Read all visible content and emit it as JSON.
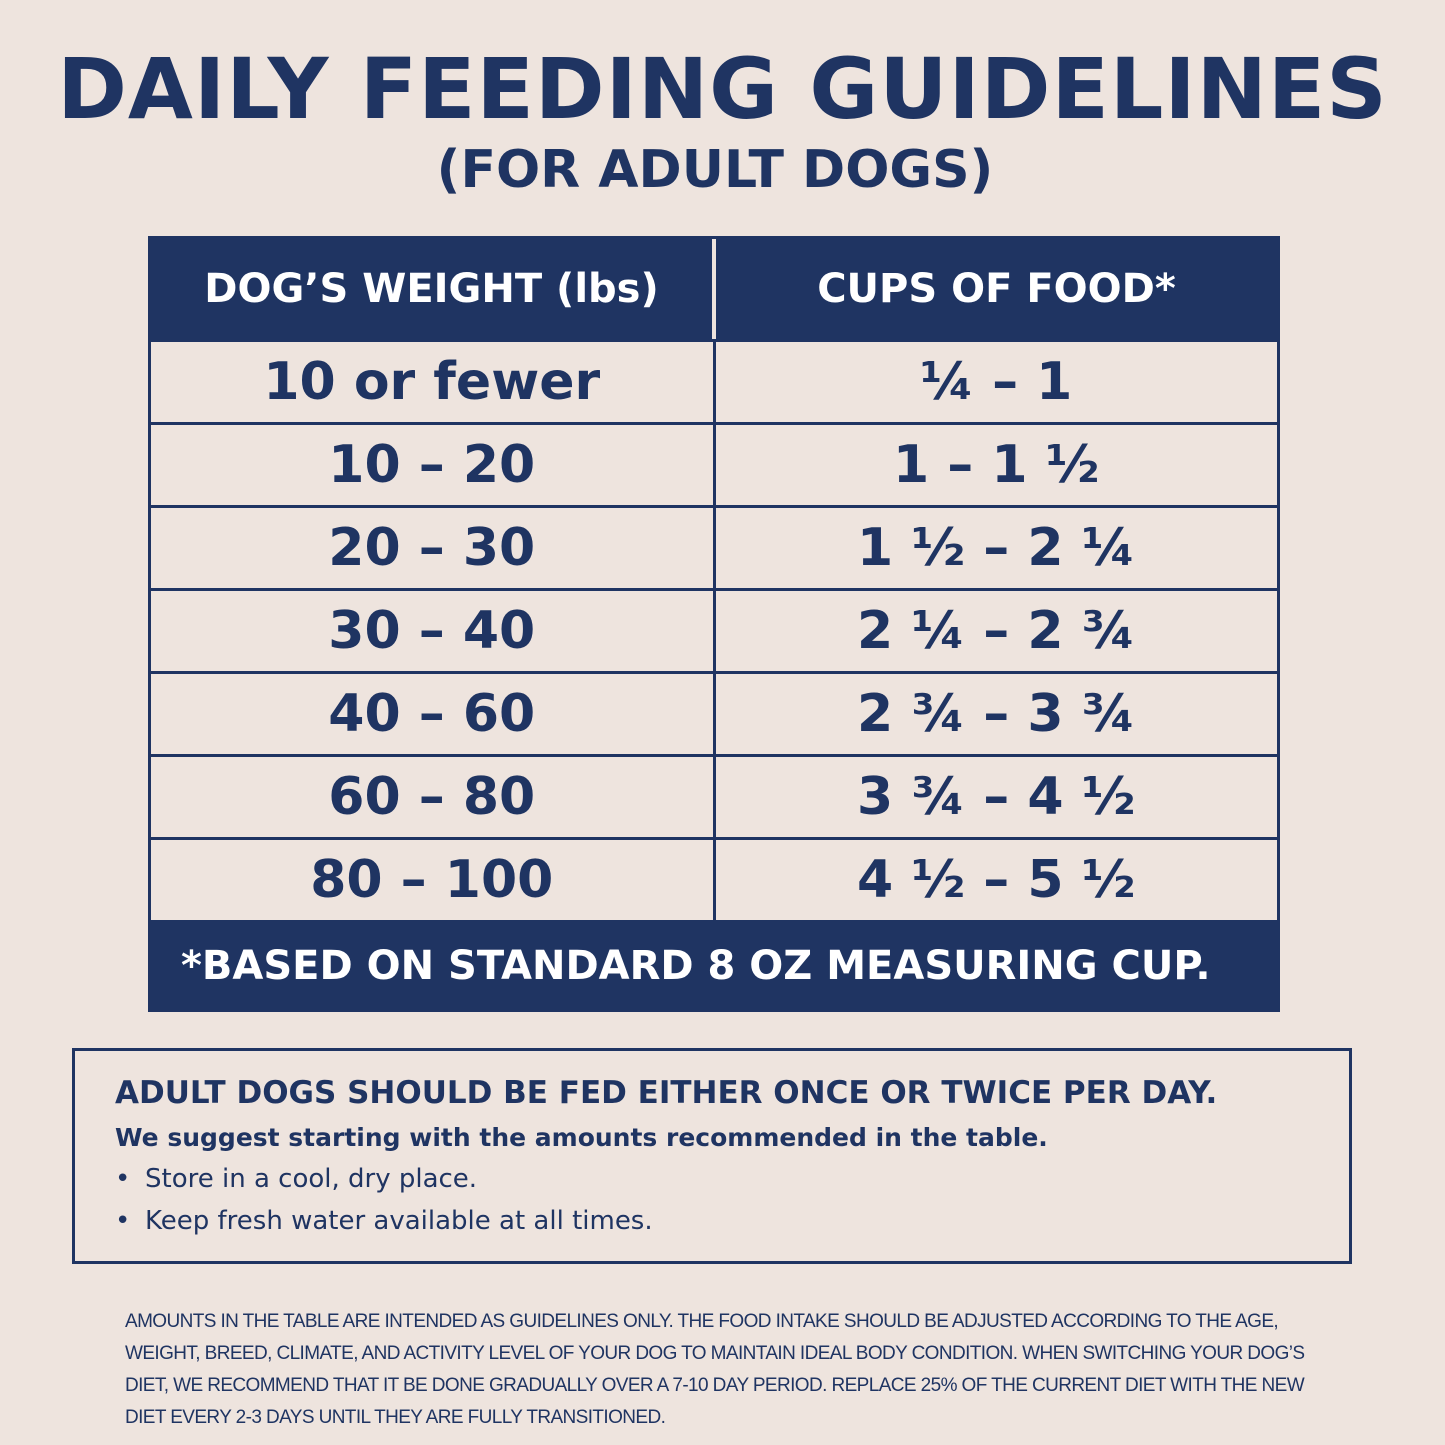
{
  "header": {
    "title": "DAILY FEEDING GUIDELINES",
    "subtitle": "(FOR ADULT DOGS)"
  },
  "table": {
    "columns": [
      "DOG’S WEIGHT (lbs)",
      "CUPS OF FOOD*"
    ],
    "rows": [
      [
        "10 or fewer",
        "¼ – 1"
      ],
      [
        "10 – 20",
        "1 – 1 ½"
      ],
      [
        "20 – 30",
        "1 ½ – 2 ¼"
      ],
      [
        "30 – 40",
        "2 ¼ – 2 ¾"
      ],
      [
        "40 – 60",
        "2 ¾ – 3 ¾"
      ],
      [
        "60 – 80",
        "3 ¾ – 4 ½"
      ],
      [
        "80 – 100",
        "4 ½ – 5 ½"
      ]
    ],
    "footnote": "*BASED ON STANDARD 8 OZ MEASURING CUP."
  },
  "notes": {
    "heading": "ADULT DOGS SHOULD BE FED EITHER ONCE OR TWICE PER DAY.",
    "intro": "We suggest starting with the amounts recommended in the table.",
    "bullets": [
      "Store in a cool, dry place.",
      "Keep fresh water available at all times."
    ]
  },
  "disclaimer": "AMOUNTS IN THE TABLE ARE INTENDED AS GUIDELINES ONLY. THE FOOD INTAKE SHOULD BE ADJUSTED ACCORDING TO THE AGE, WEIGHT, BREED, CLIMATE, AND ACTIVITY LEVEL OF YOUR DOG TO MAINTAIN IDEAL BODY CONDITION. WHEN SWITCHING YOUR DOG’S DIET, WE RECOMMEND THAT IT BE DONE GRADUALLY OVER A 7-10 DAY PERIOD. REPLACE 25% OF THE CURRENT DIET WITH THE NEW DIET EVERY 2-3 DAYS UNTIL THEY ARE FULLY TRANSITIONED."
}
